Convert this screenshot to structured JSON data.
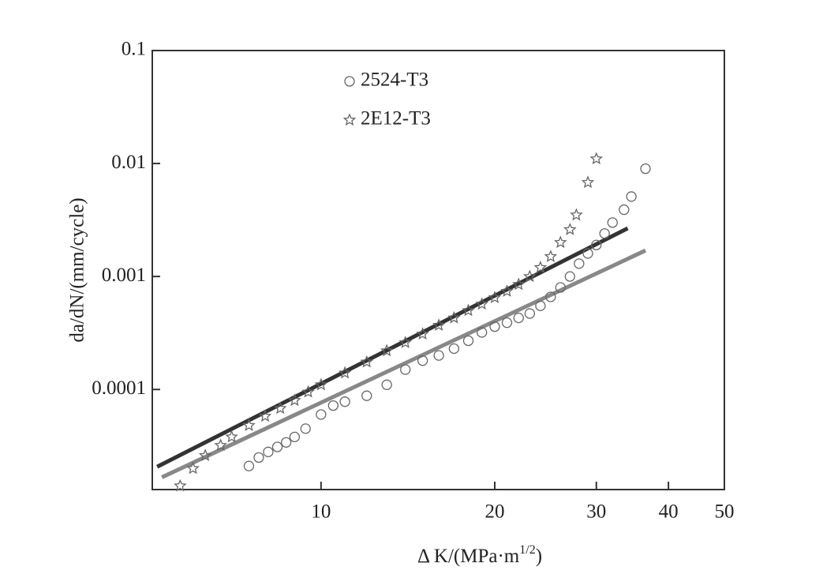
{
  "chart_data": {
    "type": "scatter",
    "x_label": [
      "Δ K/(MPa·m",
      "1/2",
      ")"
    ],
    "y_label": "da/dN/(mm/cycle)",
    "xscale": "log",
    "yscale": "log",
    "xlim": [
      5.1,
      50
    ],
    "ylim": [
      1.3e-05,
      0.1
    ],
    "xticks": [
      10,
      20,
      30,
      40,
      50
    ],
    "yticks": [
      0.1,
      0.01,
      0.001,
      0.0001
    ],
    "legend": "upper-left",
    "series": [
      {
        "name": "2524-T3",
        "marker": "circle",
        "color": "#666666",
        "x": [
          7.5,
          7.8,
          8.1,
          8.4,
          8.7,
          9,
          9.4,
          10,
          10.5,
          11,
          12,
          13,
          14,
          15,
          16,
          17,
          18,
          19,
          20,
          21,
          22,
          23,
          24,
          25,
          26,
          27,
          28,
          29,
          30,
          31,
          32,
          33.5,
          34.5,
          36.5
        ],
        "values": [
          2.1e-05,
          2.5e-05,
          2.8e-05,
          3.1e-05,
          3.4e-05,
          3.8e-05,
          4.5e-05,
          6e-05,
          7.2e-05,
          7.8e-05,
          8.8e-05,
          0.00011,
          0.00015,
          0.00018,
          0.0002,
          0.00023,
          0.00027,
          0.00032,
          0.00036,
          0.00039,
          0.00043,
          0.00047,
          0.00055,
          0.00066,
          0.0008,
          0.001,
          0.0013,
          0.0016,
          0.0019,
          0.0024,
          0.003,
          0.0039,
          0.0051,
          0.009
        ]
      },
      {
        "name": "2E12-T3",
        "marker": "star",
        "color": "#666666",
        "x": [
          5.7,
          6,
          6.3,
          6.7,
          7,
          7.5,
          8,
          8.5,
          9,
          9.5,
          10,
          11,
          12,
          13,
          14,
          15,
          16,
          17,
          18,
          19,
          20,
          21,
          22,
          23,
          24,
          25,
          26,
          27,
          27.7,
          29,
          30
        ],
        "values": [
          1.4e-05,
          2e-05,
          2.6e-05,
          3.2e-05,
          3.8e-05,
          4.8e-05,
          5.8e-05,
          6.8e-05,
          8e-05,
          9.5e-05,
          0.00011,
          0.00014,
          0.000175,
          0.00022,
          0.00026,
          0.00031,
          0.00037,
          0.00043,
          0.0005,
          0.00057,
          0.00065,
          0.00074,
          0.00085,
          0.001,
          0.0012,
          0.0015,
          0.002,
          0.0026,
          0.0035,
          0.0068,
          0.011
        ]
      }
    ],
    "fit_lines": [
      {
        "color": "#333333",
        "x": [
          5.2,
          34
        ],
        "values": [
          2.07e-05,
          0.00267
        ]
      },
      {
        "color": "#888888",
        "x": [
          5.3,
          36.5
        ],
        "values": [
          1.67e-05,
          0.0017
        ]
      }
    ]
  }
}
